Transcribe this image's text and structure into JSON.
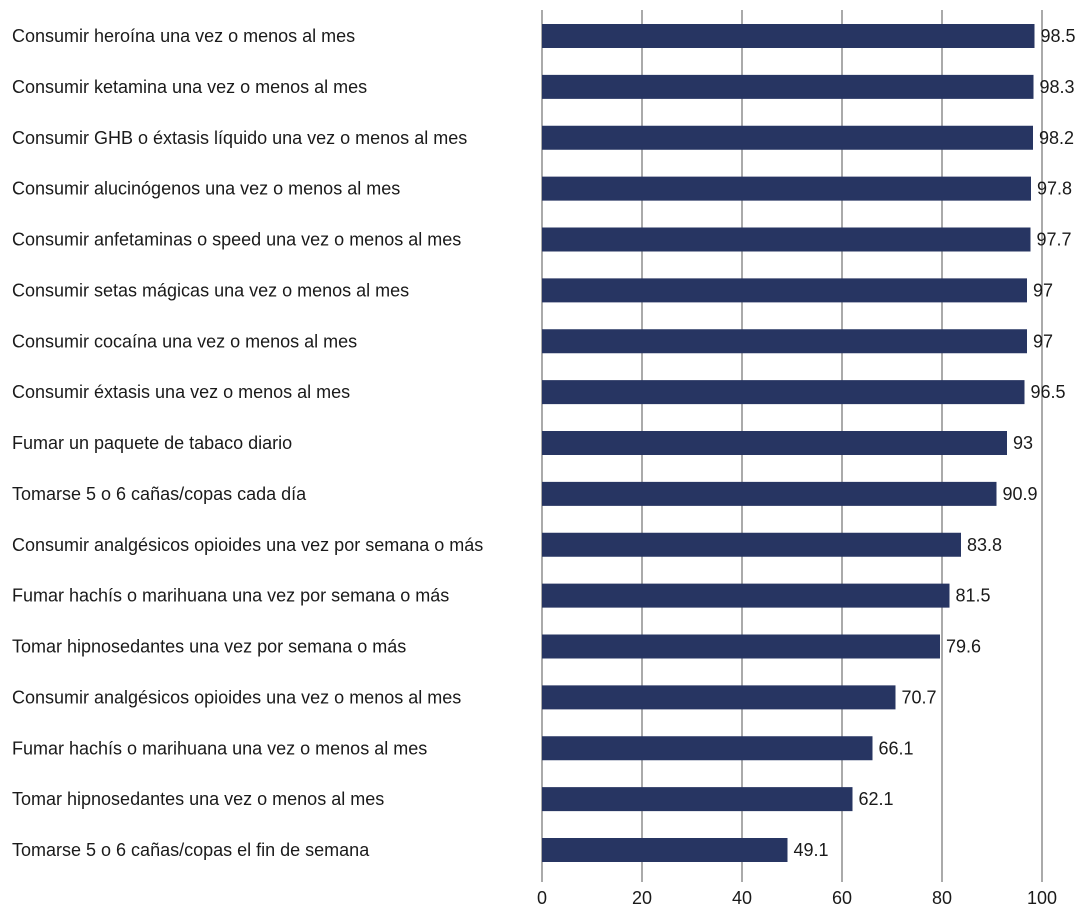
{
  "chart_data": {
    "type": "bar",
    "orientation": "horizontal",
    "title": "",
    "xlabel": "",
    "ylabel": "",
    "xlim": [
      0,
      100
    ],
    "ticks": [
      0,
      20,
      40,
      60,
      80,
      100
    ],
    "grid": true,
    "bar_color": "#273562",
    "categories": [
      "Consumir heroína una vez o menos al mes",
      "Consumir ketamina una vez o menos al mes",
      "Consumir GHB o éxtasis líquido una vez o menos al mes",
      "Consumir alucinógenos una vez o menos al mes",
      "Consumir anfetaminas o speed una vez o menos al mes",
      "Consumir setas mágicas una vez o menos al mes",
      "Consumir cocaína una vez o menos al mes",
      "Consumir éxtasis una vez o menos al mes",
      "Fumar un paquete de tabaco diario",
      "Tomarse 5 o 6 cañas/copas cada día",
      "Consumir analgésicos opioides una vez por semana o más",
      "Fumar hachís o marihuana una vez por semana o más",
      "Tomar hipnosedantes una vez por semana o más",
      "Consumir analgésicos opioides una vez o menos al mes",
      "Fumar hachís o marihuana una vez o menos al mes",
      "Tomar hipnosedantes una vez o menos al mes",
      "Tomarse 5 o 6 cañas/copas el fin de semana"
    ],
    "values": [
      98.5,
      98.3,
      98.2,
      97.8,
      97.7,
      97,
      97,
      96.5,
      93,
      90.9,
      83.8,
      81.5,
      79.6,
      70.7,
      66.1,
      62.1,
      49.1
    ],
    "value_labels": [
      "98.5",
      "98.3",
      "98.2",
      "97.8",
      "97.7",
      "97",
      "97",
      "96.5",
      "93",
      "90.9",
      "83.8",
      "81.5",
      "79.6",
      "70.7",
      "66.1",
      "62.1",
      "49.1"
    ]
  }
}
